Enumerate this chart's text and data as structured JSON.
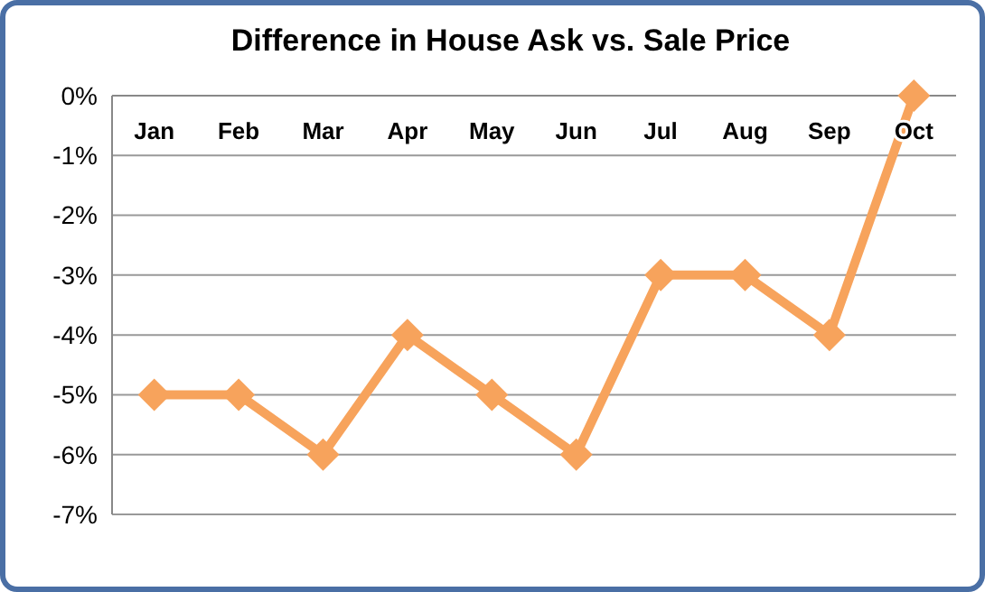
{
  "chart_data": {
    "type": "line",
    "title": "Difference in House Ask vs. Sale Price",
    "categories": [
      "Jan",
      "Feb",
      "Mar",
      "Apr",
      "May",
      "Jun",
      "Jul",
      "Aug",
      "Sep",
      "Oct"
    ],
    "values": [
      -5,
      -5,
      -6,
      -4,
      -5,
      -6,
      -3,
      -3,
      -4,
      0
    ],
    "color": "#f7a35c",
    "ylim": [
      -7,
      0
    ],
    "yticks": [
      {
        "value": 0,
        "label": "0%"
      },
      {
        "value": -1,
        "label": "-1%"
      },
      {
        "value": -2,
        "label": "-2%"
      },
      {
        "value": -3,
        "label": "-3%"
      },
      {
        "value": -4,
        "label": "-4%"
      },
      {
        "value": -5,
        "label": "-5%"
      },
      {
        "value": -6,
        "label": "-6%"
      },
      {
        "value": -7,
        "label": "-7%"
      }
    ],
    "grid": "y",
    "marker": "diamond",
    "line_style": "solid"
  }
}
